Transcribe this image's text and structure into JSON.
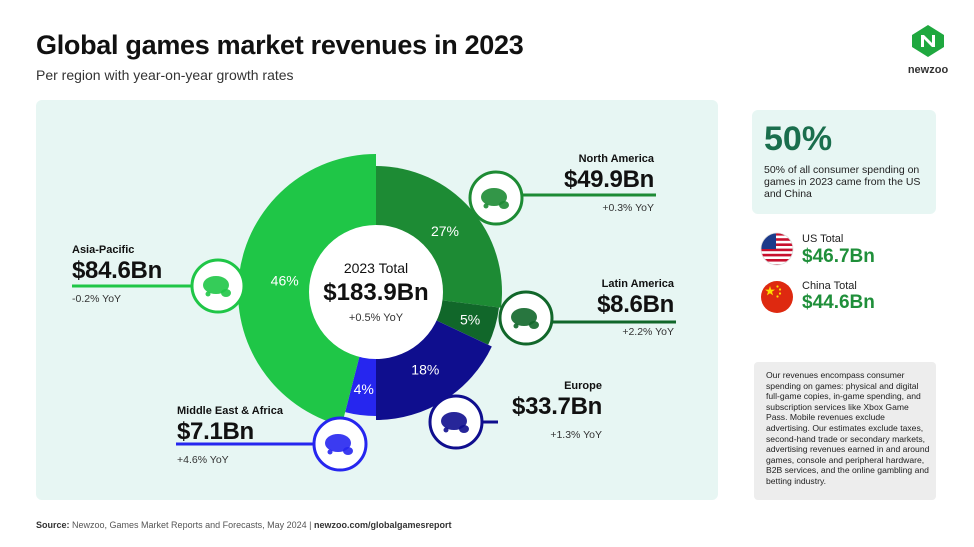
{
  "header": {
    "title": "Global games market revenues in 2023",
    "subtitle": "Per region with year-on-year growth rates",
    "logo_text": "newzoo"
  },
  "colors": {
    "north_america": "#1d8b34",
    "asia_pacific": "#1fc647",
    "latin_america": "#11672a",
    "europe": "#0f0e8e",
    "middle_east_africa": "#2626ef",
    "panel_bg": "#e7f6f3",
    "accent_dark_green": "#1a6e4d",
    "value_green": "#1f8f3a"
  },
  "chart_data": {
    "type": "pie",
    "total": {
      "label": "2023 Total",
      "value": "$183.9Bn",
      "yoy": "+0.5% YoY"
    },
    "slices": [
      {
        "key": "north_america",
        "name": "North America",
        "percent": 27,
        "percent_label": "27%",
        "value": "$49.9Bn",
        "yoy": "+0.3% YoY",
        "color": "#1d8b34"
      },
      {
        "key": "latin_america",
        "name": "Latin America",
        "percent": 5,
        "percent_label": "5%",
        "value": "$8.6Bn",
        "yoy": "+2.2% YoY",
        "color": "#11672a"
      },
      {
        "key": "europe",
        "name": "Europe",
        "percent": 18,
        "percent_label": "18%",
        "value": "$33.7Bn",
        "yoy": "+1.3% YoY",
        "color": "#0f0e8e"
      },
      {
        "key": "middle_east_africa",
        "name": "Middle East & Africa",
        "percent": 4,
        "percent_label": "4%",
        "value": "$7.1Bn",
        "yoy": "+4.6% YoY",
        "color": "#2626ef"
      },
      {
        "key": "asia_pacific",
        "name": "Asia-Pacific",
        "percent": 46,
        "percent_label": "46%",
        "value": "$84.6Bn",
        "yoy": "-0.2% YoY",
        "color": "#1fc647"
      }
    ]
  },
  "stat": {
    "big": "50%",
    "description": "50% of all consumer spending on games in 2023 came from the US and China"
  },
  "countries": {
    "us": {
      "label": "US Total",
      "value": "$46.7Bn",
      "flag_icon": "us-flag-icon"
    },
    "china": {
      "label": "China Total",
      "value": "$44.6Bn",
      "flag_icon": "china-flag-icon"
    }
  },
  "note": "Our revenues encompass consumer spending on games: physical and digital full-game copies, in-game spending, and subscription services like Xbox Game Pass. Mobile revenues exclude advertising. Our estimates exclude taxes, second-hand trade or secondary markets, advertising revenues earned in and around games, console and peripheral hardware, B2B services, and the online gambling and betting industry.",
  "source": {
    "prefix": "Source:",
    "text": "Newzoo, Games Market Reports and Forecasts, May 2024",
    "separator": "|",
    "link": "newzoo.com/globalgamesreport"
  }
}
